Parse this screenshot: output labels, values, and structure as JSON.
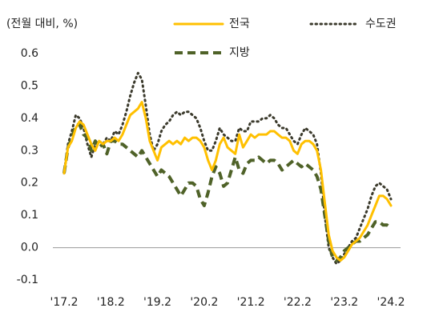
{
  "chart_data": {
    "type": "line",
    "subtitle": "(전월 대비, %)",
    "categories": [
      "'17.2",
      null,
      null,
      null,
      null,
      null,
      null,
      null,
      null,
      null,
      null,
      null,
      "'18.2",
      null,
      null,
      null,
      null,
      null,
      null,
      null,
      null,
      null,
      null,
      null,
      "'19.2",
      null,
      null,
      null,
      null,
      null,
      null,
      null,
      null,
      null,
      null,
      null,
      "'20.2",
      null,
      null,
      null,
      null,
      null,
      null,
      null,
      null,
      null,
      null,
      null,
      "'21.2",
      null,
      null,
      null,
      null,
      null,
      null,
      null,
      null,
      null,
      null,
      null,
      "'22.2",
      null,
      null,
      null,
      null,
      null,
      null,
      null,
      null,
      null,
      null,
      null,
      "'23.2",
      null,
      null,
      null,
      null,
      null,
      null,
      null,
      null,
      null,
      null,
      null,
      "'24.2"
    ],
    "series": [
      {
        "name": "전국",
        "color": "#ffc000",
        "dash": "solid",
        "values": [
          0.23,
          0.31,
          0.33,
          0.37,
          0.39,
          0.38,
          0.35,
          0.32,
          0.3,
          0.33,
          0.32,
          0.33,
          0.33,
          0.34,
          0.33,
          0.35,
          0.38,
          0.41,
          0.42,
          0.43,
          0.45,
          0.4,
          0.33,
          0.3,
          0.27,
          0.31,
          0.32,
          0.33,
          0.32,
          0.33,
          0.32,
          0.34,
          0.33,
          0.34,
          0.34,
          0.33,
          0.31,
          0.27,
          0.24,
          0.27,
          0.32,
          0.34,
          0.31,
          0.3,
          0.29,
          0.35,
          0.31,
          0.33,
          0.35,
          0.34,
          0.35,
          0.35,
          0.35,
          0.36,
          0.36,
          0.35,
          0.34,
          0.34,
          0.33,
          0.3,
          0.29,
          0.32,
          0.33,
          0.33,
          0.32,
          0.3,
          0.24,
          0.14,
          0.04,
          -0.01,
          -0.03,
          -0.04,
          -0.03,
          -0.01,
          0.01,
          0.02,
          0.03,
          0.05,
          0.07,
          0.1,
          0.13,
          0.16,
          0.16,
          0.15,
          0.13
        ]
      },
      {
        "name": "수도권",
        "color": "#3b3a2c",
        "dash": "dotted",
        "values": [
          0.23,
          0.32,
          0.36,
          0.41,
          0.4,
          0.37,
          0.32,
          0.28,
          0.32,
          0.33,
          0.32,
          0.34,
          0.33,
          0.36,
          0.35,
          0.38,
          0.42,
          0.47,
          0.51,
          0.54,
          0.52,
          0.44,
          0.35,
          0.3,
          0.32,
          0.36,
          0.38,
          0.39,
          0.41,
          0.42,
          0.41,
          0.42,
          0.42,
          0.41,
          0.4,
          0.37,
          0.33,
          0.3,
          0.3,
          0.33,
          0.37,
          0.35,
          0.34,
          0.33,
          0.33,
          0.37,
          0.36,
          0.36,
          0.39,
          0.39,
          0.39,
          0.4,
          0.4,
          0.41,
          0.4,
          0.38,
          0.37,
          0.37,
          0.35,
          0.33,
          0.32,
          0.35,
          0.37,
          0.36,
          0.35,
          0.32,
          0.23,
          0.1,
          0.0,
          -0.03,
          -0.05,
          -0.04,
          -0.02,
          0.0,
          0.02,
          0.03,
          0.06,
          0.09,
          0.12,
          0.16,
          0.19,
          0.2,
          0.19,
          0.18,
          0.15
        ]
      },
      {
        "name": "지방",
        "color": "#4f6228",
        "dash": "dashed",
        "values": [
          0.23,
          0.31,
          0.34,
          0.38,
          0.38,
          0.35,
          0.34,
          0.3,
          0.33,
          0.31,
          0.32,
          0.29,
          0.33,
          0.33,
          0.32,
          0.32,
          0.31,
          0.3,
          0.29,
          0.28,
          0.3,
          0.28,
          0.26,
          0.24,
          0.22,
          0.24,
          0.23,
          0.22,
          0.2,
          0.18,
          0.16,
          0.18,
          0.2,
          0.2,
          0.19,
          0.15,
          0.13,
          0.17,
          0.22,
          0.25,
          0.23,
          0.19,
          0.2,
          0.24,
          0.28,
          0.24,
          0.23,
          0.26,
          0.27,
          0.27,
          0.28,
          0.27,
          0.26,
          0.27,
          0.27,
          0.26,
          0.24,
          0.25,
          0.26,
          0.27,
          0.26,
          0.25,
          0.26,
          0.25,
          0.24,
          0.22,
          0.18,
          0.1,
          0.02,
          -0.03,
          -0.04,
          -0.03,
          -0.01,
          0.0,
          0.01,
          0.02,
          0.02,
          0.03,
          0.04,
          0.06,
          0.08,
          0.08,
          0.07,
          0.07,
          0.06
        ]
      }
    ],
    "ylim": [
      -0.1,
      0.6
    ],
    "yticks": [
      -0.1,
      {
        "value": 0,
        "label": "0.0"
      },
      0.1,
      0.2,
      0.3,
      0.4,
      0.5,
      0.6
    ],
    "grid": false
  }
}
